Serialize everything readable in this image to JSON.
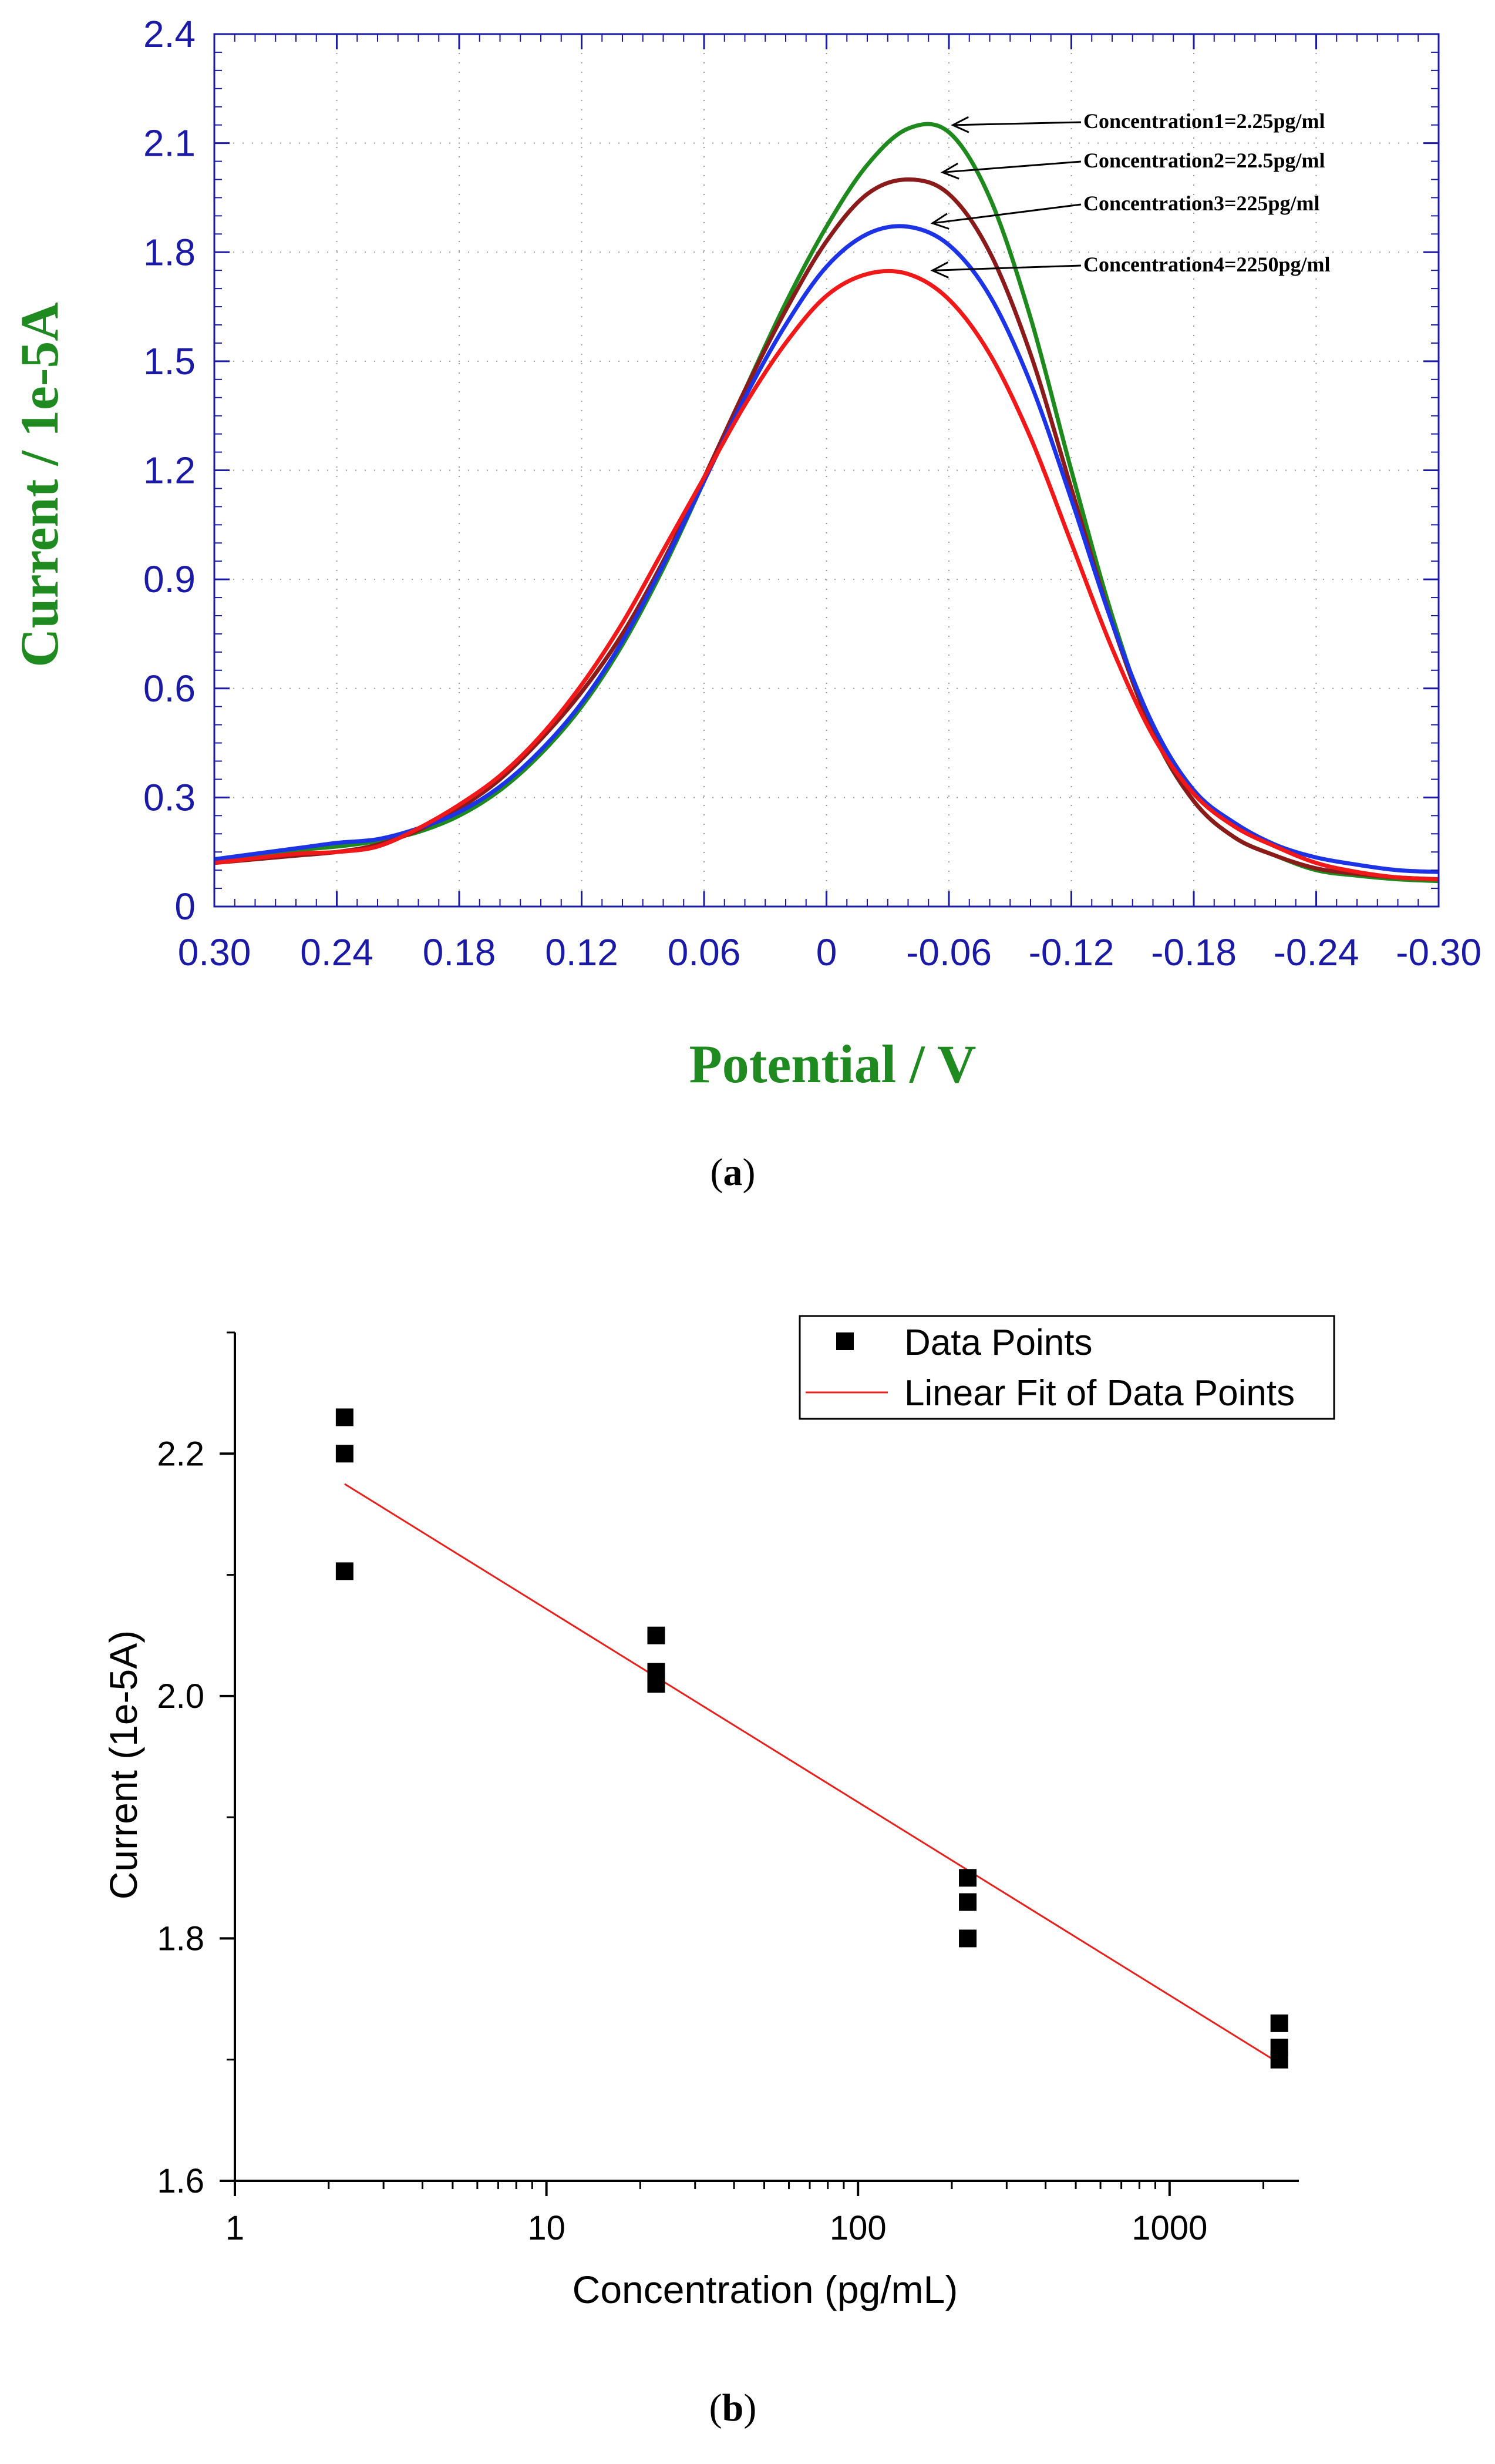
{
  "panel_a": {
    "caption_open": "(",
    "caption_letter": "a",
    "caption_close": ")"
  },
  "panel_b": {
    "caption_open": "(",
    "caption_letter": "b",
    "caption_close": ")"
  },
  "chart_data": [
    {
      "type": "line",
      "panel": "a",
      "xlabel": "Potential / V",
      "ylabel": "Current / 1e-5A",
      "xlim": [
        0.3,
        -0.3
      ],
      "ylim": [
        0,
        2.4
      ],
      "x_reversed": true,
      "x_ticks": [
        "0.30",
        "0.24",
        "0.18",
        "0.12",
        "0.06",
        "0",
        "-0.06",
        "-0.12",
        "-0.18",
        "-0.24",
        "-0.30"
      ],
      "y_ticks": [
        "0",
        "0.3",
        "0.6",
        "0.9",
        "1.2",
        "1.5",
        "1.8",
        "2.1",
        "2.4"
      ],
      "grid": true,
      "colors": {
        "axis": "#1a1aa6",
        "label": "#1f8a1f",
        "annotation": "#000000"
      },
      "series": [
        {
          "name": "Concentration1=2.25pg/ml",
          "color": "#1e8a1e",
          "x": [
            0.3,
            0.26,
            0.24,
            0.22,
            0.2,
            0.18,
            0.16,
            0.14,
            0.12,
            0.1,
            0.08,
            0.06,
            0.04,
            0.02,
            0.0,
            -0.02,
            -0.04,
            -0.06,
            -0.08,
            -0.1,
            -0.12,
            -0.14,
            -0.16,
            -0.18,
            -0.2,
            -0.22,
            -0.24,
            -0.26,
            -0.28,
            -0.3
          ],
          "y": [
            0.13,
            0.155,
            0.165,
            0.18,
            0.205,
            0.25,
            0.32,
            0.42,
            0.55,
            0.72,
            0.93,
            1.17,
            1.42,
            1.66,
            1.87,
            2.04,
            2.14,
            2.13,
            1.95,
            1.62,
            1.2,
            0.8,
            0.48,
            0.29,
            0.19,
            0.14,
            0.1,
            0.085,
            0.075,
            0.07
          ]
        },
        {
          "name": "Concentration2=22.5pg/ml",
          "color": "#8b1a1a",
          "x": [
            0.3,
            0.26,
            0.24,
            0.22,
            0.2,
            0.18,
            0.16,
            0.14,
            0.12,
            0.1,
            0.08,
            0.06,
            0.04,
            0.02,
            0.0,
            -0.02,
            -0.04,
            -0.06,
            -0.08,
            -0.1,
            -0.12,
            -0.14,
            -0.16,
            -0.18,
            -0.2,
            -0.22,
            -0.24,
            -0.26,
            -0.28,
            -0.3
          ],
          "y": [
            0.12,
            0.14,
            0.15,
            0.17,
            0.21,
            0.27,
            0.35,
            0.46,
            0.59,
            0.75,
            0.95,
            1.18,
            1.42,
            1.64,
            1.83,
            1.96,
            2.0,
            1.96,
            1.8,
            1.52,
            1.15,
            0.78,
            0.48,
            0.29,
            0.19,
            0.14,
            0.105,
            0.09,
            0.08,
            0.075
          ]
        },
        {
          "name": "Concentration3=225pg/ml",
          "color": "#1c33e6",
          "x": [
            0.3,
            0.26,
            0.24,
            0.22,
            0.2,
            0.18,
            0.16,
            0.14,
            0.12,
            0.1,
            0.08,
            0.06,
            0.04,
            0.02,
            0.0,
            -0.02,
            -0.04,
            -0.06,
            -0.08,
            -0.1,
            -0.12,
            -0.14,
            -0.16,
            -0.18,
            -0.2,
            -0.22,
            -0.24,
            -0.26,
            -0.28,
            -0.3
          ],
          "y": [
            0.13,
            0.16,
            0.175,
            0.185,
            0.215,
            0.26,
            0.33,
            0.43,
            0.56,
            0.73,
            0.94,
            1.17,
            1.4,
            1.6,
            1.76,
            1.85,
            1.87,
            1.82,
            1.68,
            1.44,
            1.12,
            0.78,
            0.5,
            0.32,
            0.23,
            0.17,
            0.135,
            0.115,
            0.1,
            0.095
          ]
        },
        {
          "name": "Concentration4=2250pg/ml",
          "color": "#f01818",
          "x": [
            0.3,
            0.26,
            0.24,
            0.22,
            0.2,
            0.18,
            0.16,
            0.14,
            0.12,
            0.1,
            0.08,
            0.06,
            0.04,
            0.02,
            0.0,
            -0.02,
            -0.04,
            -0.06,
            -0.08,
            -0.1,
            -0.12,
            -0.14,
            -0.16,
            -0.18,
            -0.2,
            -0.22,
            -0.24,
            -0.26,
            -0.28,
            -0.3
          ],
          "y": [
            0.12,
            0.145,
            0.15,
            0.165,
            0.215,
            0.28,
            0.36,
            0.47,
            0.61,
            0.78,
            0.98,
            1.18,
            1.38,
            1.55,
            1.68,
            1.74,
            1.74,
            1.67,
            1.52,
            1.29,
            1.0,
            0.71,
            0.47,
            0.31,
            0.22,
            0.165,
            0.12,
            0.095,
            0.08,
            0.075
          ]
        }
      ],
      "annotations": [
        {
          "text": "Concentration1=2.25pg/ml",
          "target": [
            -0.055,
            2.14
          ]
        },
        {
          "text": "Concentration2=22.5pg/ml",
          "target": [
            -0.05,
            2.01
          ]
        },
        {
          "text": "Concentration3=225pg/ml",
          "target": [
            -0.045,
            1.87
          ]
        },
        {
          "text": "Concentration4=2250pg/ml",
          "target": [
            -0.045,
            1.74
          ]
        }
      ]
    },
    {
      "type": "scatter",
      "panel": "b",
      "xlabel": "Concentration (pg/mL)",
      "ylabel": "Current (1e-5A)",
      "xscale": "log",
      "xlim": [
        1,
        2600
      ],
      "ylim": [
        1.6,
        2.3
      ],
      "x_ticks": [
        {
          "value": 1,
          "label": "1"
        },
        {
          "value": 10,
          "label": "10"
        },
        {
          "value": 100,
          "label": "100"
        },
        {
          "value": 1000,
          "label": "1000"
        }
      ],
      "y_ticks": [
        {
          "value": 1.6,
          "label": "1.6"
        },
        {
          "value": 1.8,
          "label": "1.8"
        },
        {
          "value": 2.0,
          "label": "2.0"
        },
        {
          "value": 2.2,
          "label": "2.2"
        }
      ],
      "grid": false,
      "legend_position": "top-right",
      "legend": [
        "Data Points",
        "Linear Fit of Data Points"
      ],
      "colors": {
        "points": "#000000",
        "fit": "#e8201c"
      },
      "points": [
        {
          "x": 2.25,
          "y": 2.23
        },
        {
          "x": 2.25,
          "y": 2.2
        },
        {
          "x": 2.25,
          "y": 2.103
        },
        {
          "x": 22.5,
          "y": 2.05
        },
        {
          "x": 22.5,
          "y": 2.02
        },
        {
          "x": 22.5,
          "y": 2.01
        },
        {
          "x": 225,
          "y": 1.85
        },
        {
          "x": 225,
          "y": 1.83
        },
        {
          "x": 225,
          "y": 1.8
        },
        {
          "x": 2250,
          "y": 1.73
        },
        {
          "x": 2250,
          "y": 1.71
        },
        {
          "x": 2250,
          "y": 1.7
        }
      ],
      "fit": {
        "x": [
          2.25,
          2250
        ],
        "y": [
          2.175,
          1.697
        ]
      }
    }
  ]
}
